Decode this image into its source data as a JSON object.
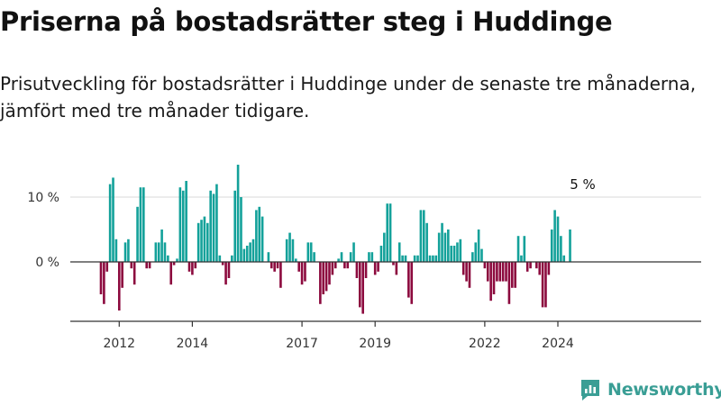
{
  "header": {
    "title": "Priserna på bostadsrätter steg i Huddinge",
    "subtitle": "Prisutveckling för bostadsrätter i Huddinge under de senaste tre månaderna, jämfört med tre månader tidigare."
  },
  "brand": {
    "name": "Newsworthy"
  },
  "colors": {
    "positive": "#13a19a",
    "negative": "#8c0a3e",
    "brand": "#3a9e95"
  },
  "chart_data": {
    "type": "bar",
    "title": "Priserna på bostadsrätter steg i Huddinge",
    "xlabel": "",
    "ylabel": "",
    "ylim": [
      -8.5,
      17
    ],
    "yticks": [
      {
        "value": 0,
        "label": "0 %"
      },
      {
        "value": 10,
        "label": "10 %"
      }
    ],
    "xticks": [
      {
        "year": 2012,
        "label": "2012"
      },
      {
        "year": 2014,
        "label": "2014"
      },
      {
        "year": 2017,
        "label": "2017"
      },
      {
        "year": 2019,
        "label": "2019"
      },
      {
        "year": 2022,
        "label": "2022"
      },
      {
        "year": 2024,
        "label": "2024"
      }
    ],
    "start": {
      "year": 2011,
      "month": 7
    },
    "annotation": {
      "label": "5 %",
      "value": 5
    },
    "values": [
      -5,
      -6.5,
      -1.5,
      12,
      13,
      3.5,
      -7.5,
      -4,
      3,
      3.5,
      -1,
      -3.5,
      8.5,
      11.5,
      11.5,
      -1,
      -1,
      0,
      3,
      3,
      5,
      3,
      1,
      -3.5,
      -0.5,
      0.5,
      11.5,
      11,
      12.5,
      -1.5,
      -2,
      -1,
      6,
      6.5,
      7,
      6,
      11,
      10.5,
      12,
      1,
      -0.5,
      -3.5,
      -2.5,
      1,
      11,
      15,
      10,
      2,
      2.5,
      3,
      3.5,
      8,
      8.5,
      7,
      0,
      1.5,
      -1,
      -1.5,
      -1,
      -4,
      0,
      3.5,
      4.5,
      3.5,
      0.5,
      -1.5,
      -3.5,
      -3,
      3,
      3,
      1.5,
      0,
      -6.5,
      -5,
      -4.5,
      -3.5,
      -2,
      -1,
      0.5,
      1.5,
      -1,
      -1,
      1.5,
      3,
      -2.5,
      -7,
      -8,
      -2.5,
      1.5,
      1.5,
      -2,
      -1.5,
      2.5,
      4.5,
      9,
      9,
      -0.5,
      -2,
      3,
      1,
      1,
      -5.5,
      -6.5,
      1,
      1,
      8,
      8,
      6,
      1,
      1,
      1,
      4.5,
      6,
      4.5,
      5,
      2.5,
      2.5,
      3,
      3.5,
      -2,
      -3,
      -4,
      1.5,
      3,
      5,
      2,
      -1,
      -3,
      -6,
      -5,
      -3,
      -3,
      -3,
      -3,
      -6.5,
      -4,
      -4,
      4,
      1,
      4,
      -1.5,
      -1,
      0,
      -1,
      -2,
      -7,
      -7,
      -2,
      5,
      8,
      7,
      4,
      1,
      0,
      5
    ]
  }
}
